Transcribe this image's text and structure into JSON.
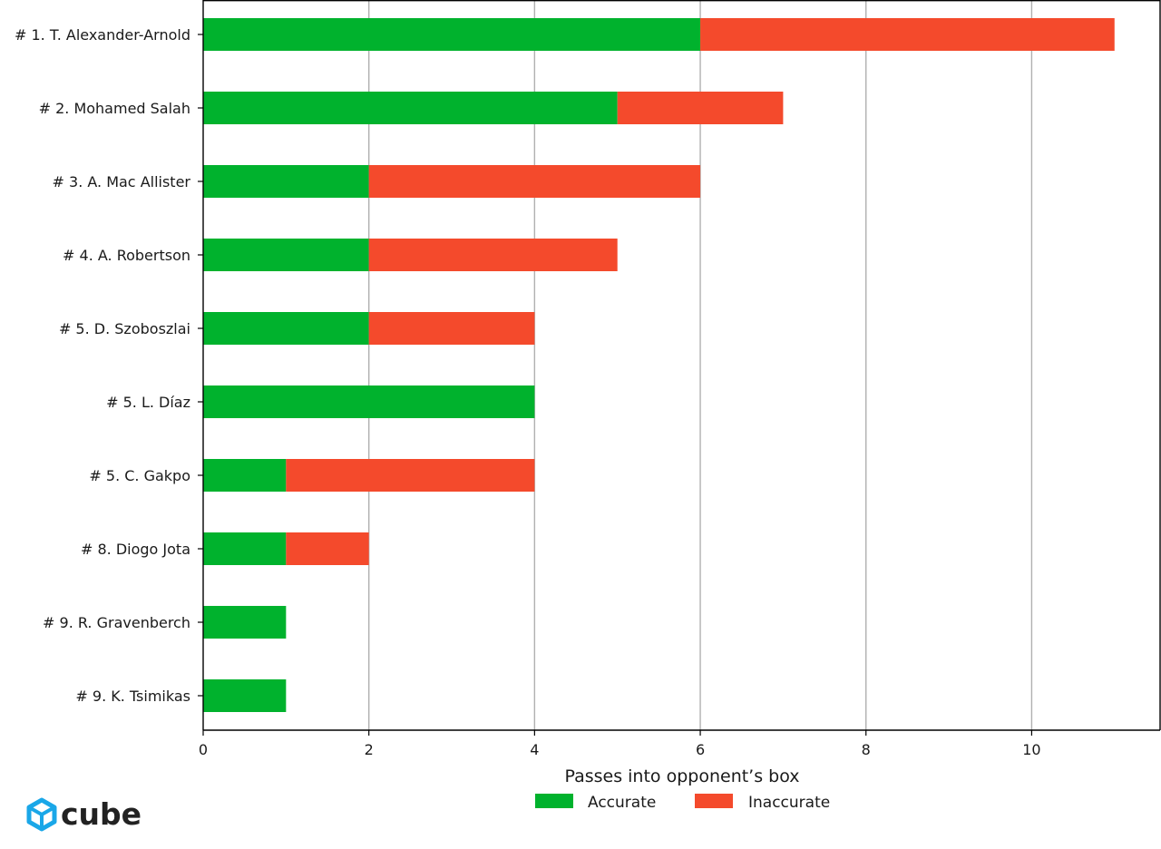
{
  "chart_data": {
    "type": "bar",
    "orientation": "horizontal",
    "stacked": true,
    "categories": [
      "# 1.  T. Alexander-Arnold",
      "# 2.  Mohamed Salah",
      "# 3.  A. Mac Allister",
      "# 4.  A. Robertson",
      "# 5.  D. Szoboszlai",
      "# 5.  L. Díaz",
      "# 5.  C. Gakpo",
      "# 8.  Diogo Jota",
      "# 9.  R. Gravenberch",
      "# 9.  K. Tsimikas"
    ],
    "series": [
      {
        "name": "Accurate",
        "color": "#00b22d",
        "values": [
          6,
          5,
          2,
          2,
          2,
          4,
          1,
          1,
          1,
          1
        ]
      },
      {
        "name": "Inaccurate",
        "color": "#f44a2c",
        "values": [
          5,
          2,
          4,
          3,
          2,
          0,
          3,
          1,
          0,
          0
        ]
      }
    ],
    "xlabel": "Passes into opponent’s box",
    "ylabel": "",
    "title": "",
    "xlim": [
      0,
      11.55
    ],
    "xticks": [
      0,
      2,
      4,
      6,
      8,
      10
    ],
    "grid": "vertical",
    "legend_position": "bottom-center"
  },
  "watermark": {
    "text": "cube",
    "icon": "cube-logo-icon",
    "color": "#1aa7e8",
    "text_color": "#222222"
  }
}
